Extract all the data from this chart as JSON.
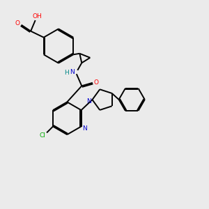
{
  "bg_color": "#ebebeb",
  "atom_colors": {
    "C": "#000000",
    "N": "#0000cc",
    "O": "#ff0000",
    "Cl": "#00aa00",
    "H": "#008888"
  },
  "line_color": "#000000",
  "line_width": 1.4,
  "doff": 0.055
}
